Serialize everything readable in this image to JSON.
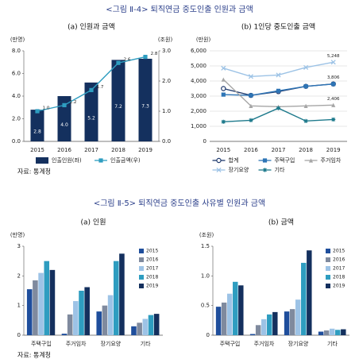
{
  "figures": [
    {
      "title": "<그림 Ⅱ-4> 퇴직연금 중도인출 인원과 금액",
      "source": "자료: 통계청"
    },
    {
      "title": "<그림 Ⅱ-5> 퇴직연금 중도인출 사유별 인원과 금액",
      "source": "자료: 통계청"
    }
  ],
  "chart_data": [
    {
      "type": "bar",
      "title": "(a) 인원과 금액",
      "y_label": "(만명)",
      "y2_label": "(조원)",
      "categories": [
        "2015",
        "2016",
        "2017",
        "2018",
        "2019"
      ],
      "series": [
        {
          "name": "인출인원(좌)",
          "color": "#14305e",
          "values": [
            2.8,
            4.0,
            5.2,
            7.2,
            7.3
          ],
          "value_labels": [
            "2.8",
            "4.0",
            "5.2",
            "7.2",
            "7.3"
          ]
        },
        {
          "name": "인출금액(우)",
          "type": "line",
          "marker": "square",
          "axis": "y2",
          "color": "#2e9dc0",
          "values": [
            1.0,
            1.2,
            1.7,
            2.6,
            2.8
          ],
          "value_labels": [
            "1.0",
            "1.2",
            "1.7",
            "2.6",
            "2.8"
          ]
        }
      ],
      "ylim": [
        0,
        8
      ],
      "yticks": [
        {
          "value": 0,
          "label": "0.0"
        },
        {
          "value": 2,
          "label": "2.0"
        },
        {
          "value": 4,
          "label": "4.0"
        },
        {
          "value": 6,
          "label": "6.0"
        },
        {
          "value": 8,
          "label": "8.0"
        }
      ],
      "y2lim": [
        0,
        3
      ],
      "y2ticks": [
        {
          "value": 0,
          "label": "0.0"
        },
        {
          "value": 1,
          "label": "1.0"
        },
        {
          "value": 2,
          "label": "2.0"
        },
        {
          "value": 3,
          "label": "3.0"
        }
      ],
      "grid": false,
      "legend": "bottom"
    },
    {
      "type": "line",
      "title": "(b) 1인당 중도인출 금액",
      "y_label": "(만원)",
      "categories": [
        "2015",
        "2016",
        "2017",
        "2018",
        "2019"
      ],
      "series": [
        {
          "name": "합계",
          "marker": "circle",
          "color": "#1f3a6e",
          "values": [
            3500,
            3050,
            3300,
            3650,
            3806
          ],
          "value_labels": [
            null,
            null,
            null,
            null,
            "3,806"
          ]
        },
        {
          "name": "주택구입",
          "marker": "square",
          "color": "#2e75b6",
          "values": [
            3100,
            3050,
            3350,
            3650,
            3800
          ]
        },
        {
          "name": "주거임차",
          "marker": "triangle",
          "color": "#a6a6a6",
          "values": [
            4100,
            2350,
            2300,
            2350,
            2406
          ],
          "value_labels": [
            null,
            null,
            null,
            null,
            "2,406"
          ]
        },
        {
          "name": "장기요양",
          "marker": "x",
          "color": "#9dc3e6",
          "values": [
            4850,
            4300,
            4400,
            4900,
            5248
          ],
          "value_labels": [
            null,
            null,
            null,
            null,
            "5,248"
          ]
        },
        {
          "name": "기타",
          "marker": "star",
          "color": "#1e7a8c",
          "values": [
            1300,
            1400,
            2200,
            1350,
            1450
          ]
        }
      ],
      "ylim": [
        0,
        6000
      ],
      "yticks": [
        0,
        {
          "value": 1000,
          "label": "1,000"
        },
        {
          "value": 2000,
          "label": "2,000"
        },
        {
          "value": 3000,
          "label": "3,000"
        },
        {
          "value": 4000,
          "label": "4,000"
        },
        {
          "value": 5000,
          "label": "5,000"
        },
        {
          "value": 6000,
          "label": "6,000"
        }
      ],
      "grid": true,
      "legend": "bottom"
    },
    {
      "type": "bar",
      "title": "(a) 인원",
      "y_label": "(만명)",
      "categories": [
        "주택구입",
        "주거임차",
        "장기요양",
        "기타"
      ],
      "series": [
        {
          "name": "2015",
          "color": "#1f4e9c",
          "values": [
            1.55,
            0.05,
            0.8,
            0.3
          ]
        },
        {
          "name": "2016",
          "color": "#7f8a9e",
          "values": [
            1.85,
            0.7,
            1.0,
            0.42
          ]
        },
        {
          "name": "2017",
          "color": "#9dc3e6",
          "values": [
            2.1,
            1.15,
            1.35,
            0.55
          ]
        },
        {
          "name": "2018",
          "color": "#2e9dc0",
          "values": [
            2.5,
            1.5,
            2.5,
            0.68
          ]
        },
        {
          "name": "2019",
          "color": "#14305e",
          "values": [
            2.2,
            1.62,
            2.75,
            0.72
          ]
        }
      ],
      "ylim": [
        0,
        3
      ],
      "yticks": [
        0,
        1,
        2,
        3
      ],
      "grid": false,
      "legend": "upper right"
    },
    {
      "type": "bar",
      "title": "(b) 금액",
      "y_label": "(조원)",
      "categories": [
        "주택구입",
        "주거임차",
        "장기요양",
        "기타"
      ],
      "series": [
        {
          "name": "2015",
          "color": "#1f4e9c",
          "values": [
            0.48,
            0.02,
            0.4,
            0.06
          ]
        },
        {
          "name": "2016",
          "color": "#7f8a9e",
          "values": [
            0.55,
            0.17,
            0.44,
            0.08
          ]
        },
        {
          "name": "2017",
          "color": "#9dc3e6",
          "values": [
            0.7,
            0.27,
            0.6,
            0.11
          ]
        },
        {
          "name": "2018",
          "color": "#2e9dc0",
          "values": [
            0.9,
            0.35,
            1.22,
            0.09
          ]
        },
        {
          "name": "2019",
          "color": "#14305e",
          "values": [
            0.84,
            0.39,
            1.43,
            0.1
          ]
        }
      ],
      "ylim": [
        0,
        1.5
      ],
      "yticks": [
        0,
        0.5,
        {
          "value": 1,
          "label": "1.0"
        },
        1.5
      ],
      "grid": false,
      "legend": "upper right"
    }
  ]
}
